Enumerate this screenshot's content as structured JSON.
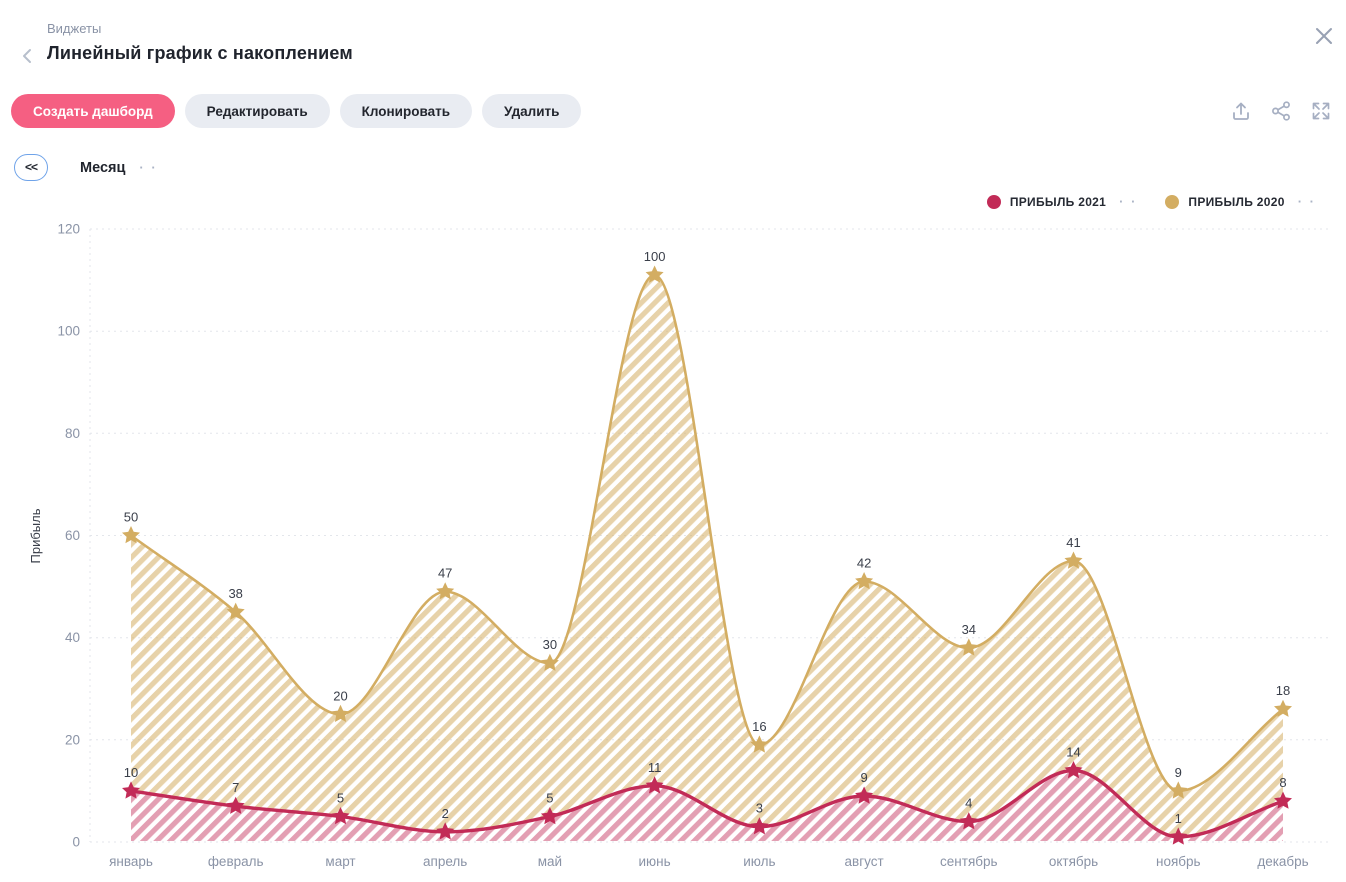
{
  "header": {
    "breadcrumb": "Виджеты",
    "title": "Линейный график с накоплением"
  },
  "toolbar": {
    "create_dashboard": "Создать дашборд",
    "edit": "Редактировать",
    "clone": "Клонировать",
    "delete": "Удалить"
  },
  "filter": {
    "collapse_label": "<<",
    "period_label": "Месяц"
  },
  "icons": {
    "options_dots": "· ·"
  },
  "chart_data": {
    "type": "area",
    "stacked": true,
    "curve": "smooth",
    "marker": "star",
    "fill_style": "diagonal-hatch",
    "grid": "dashed-horizontal",
    "legend_position": "top-right",
    "title": "",
    "xlabel": "",
    "ylabel": "Прибыль",
    "ylim": [
      0,
      120
    ],
    "yticks": [
      0,
      20,
      40,
      60,
      80,
      100,
      120
    ],
    "categories": [
      "январь",
      "февраль",
      "март",
      "апрель",
      "май",
      "июнь",
      "июль",
      "август",
      "сентябрь",
      "октябрь",
      "ноябрь",
      "декабрь"
    ],
    "series": [
      {
        "name": "ПРИБЫЛЬ 2021",
        "color": "#c22b57",
        "hatch_opacity": 0.45,
        "values": [
          10,
          7,
          5,
          2,
          5,
          11,
          3,
          9,
          4,
          14,
          1,
          8
        ]
      },
      {
        "name": "ПРИБЫЛЬ 2020",
        "color": "#d3ad62",
        "hatch_opacity": 0.55,
        "values": [
          50,
          38,
          20,
          47,
          30,
          100,
          16,
          42,
          34,
          41,
          9,
          18
        ]
      }
    ]
  },
  "colors": {
    "primary_button": "#f55f82",
    "secondary_button": "#e9ecf2",
    "accent_blue": "#6fa3e9",
    "muted_text": "#8a93a6",
    "dark_text": "#20242d",
    "icon_gray": "#a6afc2",
    "grid_line": "#e3e6eb"
  }
}
